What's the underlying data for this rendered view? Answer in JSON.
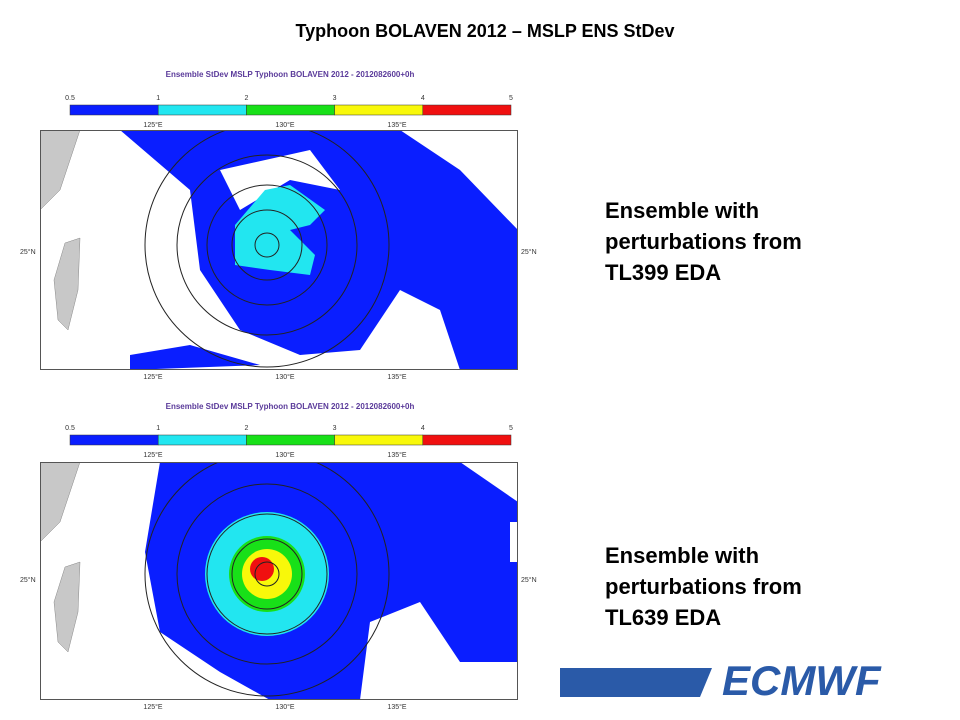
{
  "title": "Typhoon BOLAVEN 2012 – MSLP ENS StDev",
  "panels": [
    {
      "map_title": "Ensemble StDev MSLP Typhoon BOLAVEN 2012 - 2012082600+0h",
      "colorbar": [
        0.5,
        1,
        2,
        3,
        4,
        5
      ],
      "lon_labels_top": [
        "125°E",
        "130°E",
        "135°E"
      ],
      "lon_labels_bottom": [
        "125°E",
        "130°E",
        "135°E"
      ],
      "lat_label_left": "25°N",
      "lat_label_right": "25°N",
      "caption": [
        "Ensemble with",
        "perturbations from",
        "TL399 EDA"
      ]
    },
    {
      "map_title": "Ensemble StDev MSLP Typhoon BOLAVEN 2012 - 2012082600+0h",
      "colorbar": [
        0.5,
        1,
        2,
        3,
        4,
        5
      ],
      "lon_labels_top": [
        "125°E",
        "130°E",
        "135°E"
      ],
      "lon_labels_bottom": [
        "125°E",
        "130°E",
        "135°E"
      ],
      "lat_label_left": "25°N",
      "lat_label_right": "25°N",
      "caption": [
        "Ensemble with",
        "perturbations from",
        "TL639 EDA"
      ]
    }
  ],
  "logo": "ECMWF"
}
